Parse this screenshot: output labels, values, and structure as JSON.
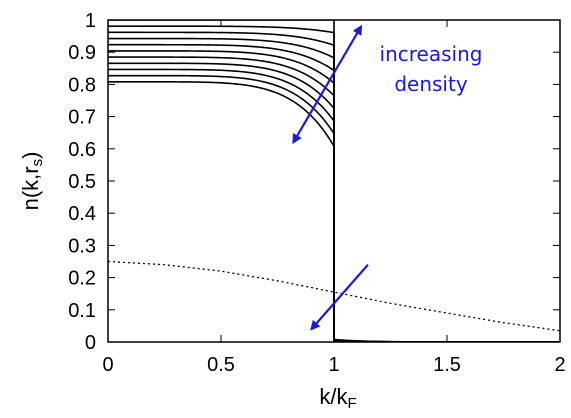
{
  "chart_data": {
    "type": "line",
    "title": "",
    "xlabel": "k/k_F",
    "ylabel": "n(k,r_s)",
    "xlim": [
      0,
      2
    ],
    "ylim": [
      0,
      1
    ],
    "x_ticks": [
      "0",
      "0.5",
      "1",
      "1.5",
      "2"
    ],
    "y_ticks": [
      "0",
      "0.1",
      "0.2",
      "0.3",
      "0.4",
      "0.5",
      "0.6",
      "0.7",
      "0.8",
      "0.9",
      "1"
    ],
    "grid": false,
    "series": [
      {
        "z": 0.6,
        "style": "solid"
      },
      {
        "z": 0.64,
        "style": "solid"
      },
      {
        "z": 0.68,
        "style": "solid"
      },
      {
        "z": 0.72,
        "style": "solid"
      },
      {
        "z": 0.76,
        "style": "solid"
      },
      {
        "z": 0.8,
        "style": "solid"
      },
      {
        "z": 0.84,
        "style": "solid"
      },
      {
        "z": 0.88,
        "style": "solid"
      },
      {
        "z": 0.92,
        "style": "solid"
      },
      {
        "z": 0.96,
        "style": "solid"
      },
      {
        "z": 1.0,
        "style": "solid"
      }
    ],
    "dotted_series": {
      "x": [
        0,
        0.25,
        0.5,
        0.75,
        1.0,
        1.25,
        1.5,
        1.75,
        2.0
      ],
      "y": [
        0.25,
        0.24,
        0.22,
        0.19,
        0.155,
        0.12,
        0.09,
        0.06,
        0.035
      ],
      "style": "dotted"
    },
    "annotations": [
      {
        "text_line1": "increasing",
        "text_line2": "density",
        "color": "#1a1adb"
      }
    ],
    "arrows": [
      {
        "from": [
          0.82,
          0.62
        ],
        "to": [
          1.12,
          0.98
        ],
        "color": "#1a1adb",
        "heads": "both"
      },
      {
        "from": [
          0.9,
          0.04
        ],
        "to": [
          1.15,
          0.24
        ],
        "color": "#1a1adb",
        "heads": "start"
      }
    ]
  }
}
